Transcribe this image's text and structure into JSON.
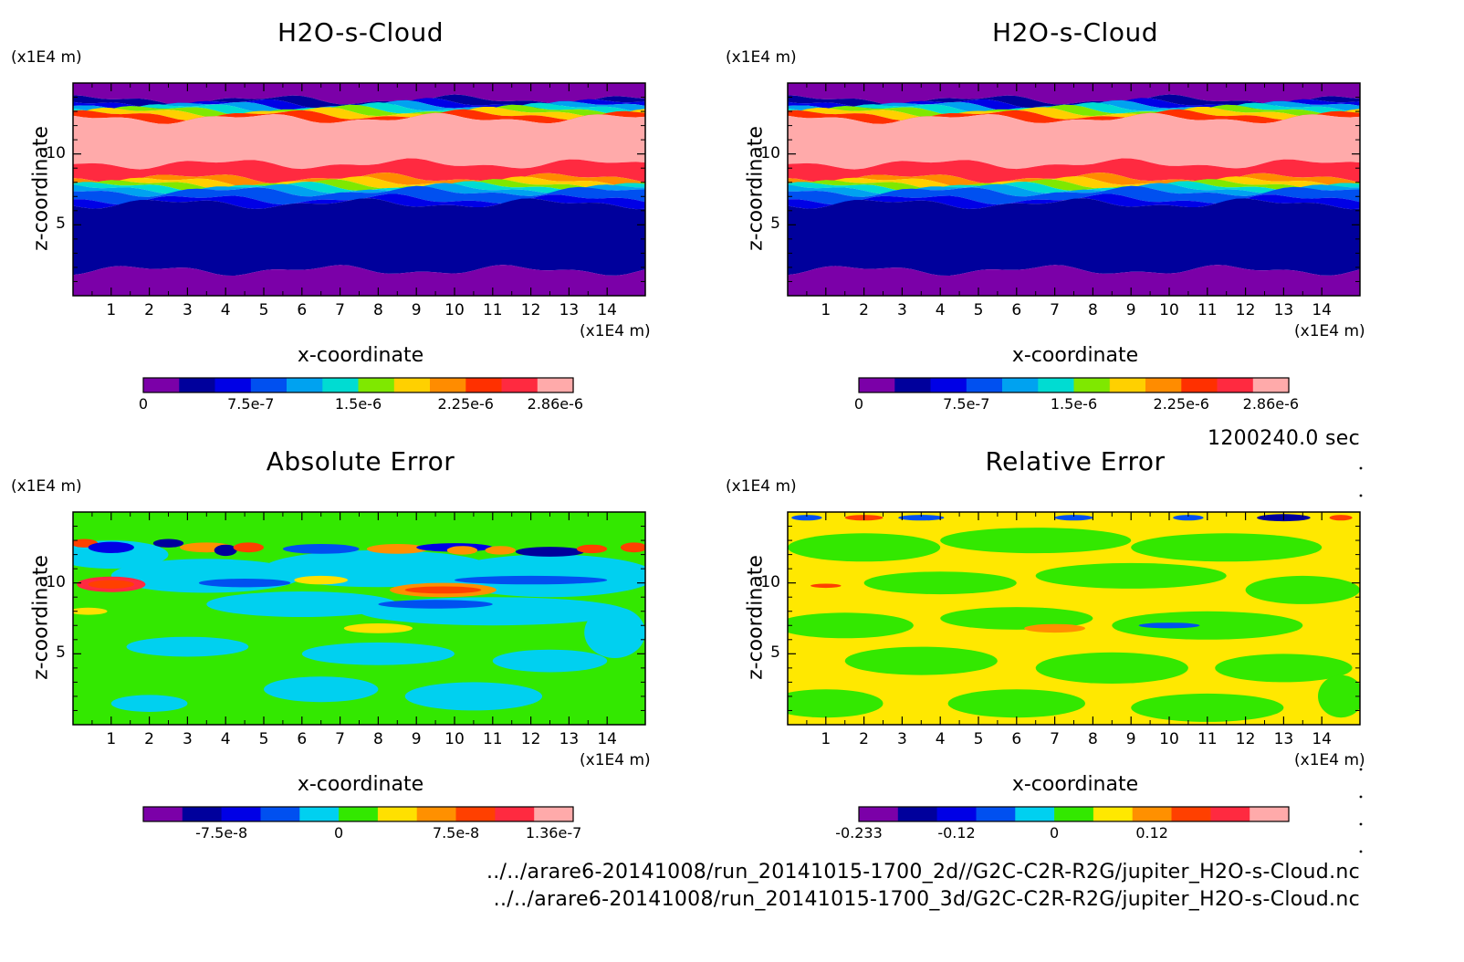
{
  "footer": {
    "time": "1200240.0 sec",
    "file1": "../../arare6-20141008/run_20141015-1700_2d//G2C-C2R-R2G/jupiter_H2O-s-Cloud.nc",
    "file2": "../../arare6-20141008/run_20141015-1700_3d/G2C-C2R-R2G/jupiter_H2O-s-Cloud.nc"
  },
  "chart_data": [
    {
      "type": "heatmap",
      "title": "H2O-s-Cloud",
      "xlabel": "x-coordinate",
      "ylabel": "z-coordinate",
      "xunit": "(x1E4 m)",
      "yunit": "(x1E4 m)",
      "xticks": [
        "1",
        "2",
        "3",
        "4",
        "5",
        "6",
        "7",
        "8",
        "9",
        "10",
        "11",
        "12",
        "13",
        "14"
      ],
      "yticks": [
        "5",
        "10"
      ],
      "xlim": [
        0,
        15
      ],
      "ylim": [
        0,
        15
      ],
      "colorbar": {
        "colors": [
          "#7b00a8",
          "#00009c",
          "#0000e6",
          "#0050f0",
          "#00a2f0",
          "#00dcd2",
          "#7fe800",
          "#ffd000",
          "#ff8c00",
          "#ff3000",
          "#ff2a40",
          "#ffaaaa"
        ],
        "labels": [
          {
            "text": "0",
            "v": 0
          },
          {
            "text": "7.5e-7",
            "v": 3
          },
          {
            "text": "1.5e-6",
            "v": 6
          },
          {
            "text": "2.25e-6",
            "v": 9
          },
          {
            "text": "2.86e-6",
            "v": 11.5
          }
        ]
      },
      "layers": [
        {
          "z0": 13.8,
          "z1": 15.0,
          "c": 0
        },
        {
          "z0": 13.55,
          "z1": 13.8,
          "c": 1
        },
        {
          "z0": 13.4,
          "z1": 13.55,
          "c": 2
        },
        {
          "z0": 13.25,
          "z1": 13.4,
          "c": 4
        },
        {
          "z0": 13.1,
          "z1": 13.25,
          "c": 5
        },
        {
          "z0": 12.95,
          "z1": 13.1,
          "c": 6
        },
        {
          "z0": 12.75,
          "z1": 12.95,
          "c": 7
        },
        {
          "z0": 12.5,
          "z1": 12.75,
          "c": 9
        },
        {
          "z0": 9.3,
          "z1": 12.5,
          "c": 11
        },
        {
          "z0": 8.3,
          "z1": 9.3,
          "c": 10
        },
        {
          "z0": 8.05,
          "z1": 8.3,
          "c": 8
        },
        {
          "z0": 7.85,
          "z1": 8.05,
          "c": 7
        },
        {
          "z0": 7.7,
          "z1": 7.85,
          "c": 6
        },
        {
          "z0": 7.55,
          "z1": 7.7,
          "c": 5
        },
        {
          "z0": 7.35,
          "z1": 7.55,
          "c": 4
        },
        {
          "z0": 6.8,
          "z1": 7.35,
          "c": 3
        },
        {
          "z0": 6.5,
          "z1": 6.8,
          "c": 2
        },
        {
          "z0": 1.8,
          "z1": 6.5,
          "c": 1
        },
        {
          "z0": 0,
          "z1": 1.8,
          "c": 0
        }
      ]
    },
    {
      "type": "heatmap",
      "title": "H2O-s-Cloud",
      "xlabel": "x-coordinate",
      "ylabel": "z-coordinate",
      "xunit": "(x1E4 m)",
      "yunit": "(x1E4 m)",
      "xticks": [
        "1",
        "2",
        "3",
        "4",
        "5",
        "6",
        "7",
        "8",
        "9",
        "10",
        "11",
        "12",
        "13",
        "14"
      ],
      "yticks": [
        "5",
        "10"
      ],
      "xlim": [
        0,
        15
      ],
      "ylim": [
        0,
        15
      ],
      "colorbar": {
        "colors": [
          "#7b00a8",
          "#00009c",
          "#0000e6",
          "#0050f0",
          "#00a2f0",
          "#00dcd2",
          "#7fe800",
          "#ffd000",
          "#ff8c00",
          "#ff3000",
          "#ff2a40",
          "#ffaaaa"
        ],
        "labels": [
          {
            "text": "0",
            "v": 0
          },
          {
            "text": "7.5e-7",
            "v": 3
          },
          {
            "text": "1.5e-6",
            "v": 6
          },
          {
            "text": "2.25e-6",
            "v": 9
          },
          {
            "text": "2.86e-6",
            "v": 11.5
          }
        ]
      },
      "layers": [
        {
          "z0": 13.8,
          "z1": 15.0,
          "c": 0
        },
        {
          "z0": 13.55,
          "z1": 13.8,
          "c": 1
        },
        {
          "z0": 13.4,
          "z1": 13.55,
          "c": 2
        },
        {
          "z0": 13.25,
          "z1": 13.4,
          "c": 4
        },
        {
          "z0": 13.1,
          "z1": 13.25,
          "c": 5
        },
        {
          "z0": 12.95,
          "z1": 13.1,
          "c": 6
        },
        {
          "z0": 12.75,
          "z1": 12.95,
          "c": 7
        },
        {
          "z0": 12.5,
          "z1": 12.75,
          "c": 9
        },
        {
          "z0": 9.3,
          "z1": 12.5,
          "c": 11
        },
        {
          "z0": 8.3,
          "z1": 9.3,
          "c": 10
        },
        {
          "z0": 8.05,
          "z1": 8.3,
          "c": 8
        },
        {
          "z0": 7.85,
          "z1": 8.05,
          "c": 7
        },
        {
          "z0": 7.7,
          "z1": 7.85,
          "c": 6
        },
        {
          "z0": 7.55,
          "z1": 7.7,
          "c": 5
        },
        {
          "z0": 7.35,
          "z1": 7.55,
          "c": 4
        },
        {
          "z0": 6.8,
          "z1": 7.35,
          "c": 3
        },
        {
          "z0": 6.5,
          "z1": 6.8,
          "c": 2
        },
        {
          "z0": 1.8,
          "z1": 6.5,
          "c": 1
        },
        {
          "z0": 0,
          "z1": 1.8,
          "c": 0
        }
      ]
    },
    {
      "type": "heatmap",
      "title": "Absolute Error",
      "xlabel": "x-coordinate",
      "ylabel": "z-coordinate",
      "xunit": "(x1E4 m)",
      "yunit": "(x1E4 m)",
      "xticks": [
        "1",
        "2",
        "3",
        "4",
        "5",
        "6",
        "7",
        "8",
        "9",
        "10",
        "11",
        "12",
        "13",
        "14"
      ],
      "yticks": [
        "5",
        "10"
      ],
      "xlim": [
        0,
        15
      ],
      "ylim": [
        0,
        15
      ],
      "colorbar": {
        "colors": [
          "#7b00a8",
          "#00009c",
          "#0000e6",
          "#0050f0",
          "#00d0f0",
          "#33e800",
          "#ffe000",
          "#ff9000",
          "#ff4000",
          "#ff2a40",
          "#ffaaaa"
        ],
        "labels": [
          {
            "text": "-7.5e-8",
            "v": 2
          },
          {
            "text": "0",
            "v": 5
          },
          {
            "text": "7.5e-8",
            "v": 8
          },
          {
            "text": "1.36e-7",
            "v": 10.5
          }
        ]
      },
      "background": 5,
      "blobs": [
        {
          "x": 1.0,
          "z": 12.0,
          "rx": 1.5,
          "rz": 1.0,
          "c": 4
        },
        {
          "x": 3.5,
          "z": 10.5,
          "rx": 2.5,
          "rz": 1.2,
          "c": 4
        },
        {
          "x": 8.0,
          "z": 11.0,
          "rx": 3.0,
          "rz": 1.3,
          "c": 4
        },
        {
          "x": 12.5,
          "z": 10.5,
          "rx": 2.8,
          "rz": 1.5,
          "c": 4
        },
        {
          "x": 6.0,
          "z": 8.5,
          "rx": 2.5,
          "rz": 0.9,
          "c": 4
        },
        {
          "x": 11.0,
          "z": 8.0,
          "rx": 3.5,
          "rz": 1.0,
          "c": 4
        },
        {
          "x": 3.0,
          "z": 5.5,
          "rx": 1.6,
          "rz": 0.7,
          "c": 4
        },
        {
          "x": 8.0,
          "z": 5.0,
          "rx": 2.0,
          "rz": 0.8,
          "c": 4
        },
        {
          "x": 12.5,
          "z": 4.5,
          "rx": 1.5,
          "rz": 0.8,
          "c": 4
        },
        {
          "x": 6.5,
          "z": 2.5,
          "rx": 1.5,
          "rz": 0.9,
          "c": 4
        },
        {
          "x": 10.5,
          "z": 2.0,
          "rx": 1.8,
          "rz": 1.0,
          "c": 4
        },
        {
          "x": 2.0,
          "z": 1.5,
          "rx": 1.0,
          "rz": 0.6,
          "c": 4
        },
        {
          "x": 14.2,
          "z": 6.5,
          "rx": 0.8,
          "rz": 1.8,
          "c": 4
        },
        {
          "x": 1.0,
          "z": 9.9,
          "rx": 0.9,
          "rz": 0.55,
          "c": 9
        },
        {
          "x": 1.0,
          "z": 9.9,
          "rx": 0.6,
          "rz": 0.3,
          "c": 8
        },
        {
          "x": 9.7,
          "z": 9.5,
          "rx": 1.4,
          "rz": 0.5,
          "c": 7
        },
        {
          "x": 9.7,
          "z": 9.5,
          "rx": 1.0,
          "rz": 0.25,
          "c": 8
        },
        {
          "x": 8.0,
          "z": 6.8,
          "rx": 0.9,
          "rz": 0.35,
          "c": 6
        },
        {
          "x": 6.5,
          "z": 10.2,
          "rx": 0.7,
          "rz": 0.3,
          "c": 6
        },
        {
          "x": 0.3,
          "z": 12.8,
          "rx": 0.35,
          "rz": 0.3,
          "c": 8
        },
        {
          "x": 14.7,
          "z": 12.5,
          "rx": 0.35,
          "rz": 0.35,
          "c": 8
        },
        {
          "x": 1.0,
          "z": 12.5,
          "rx": 0.6,
          "rz": 0.4,
          "c": 2
        },
        {
          "x": 2.5,
          "z": 12.8,
          "rx": 0.4,
          "rz": 0.3,
          "c": 1
        },
        {
          "x": 3.5,
          "z": 12.5,
          "rx": 0.7,
          "rz": 0.35,
          "c": 7
        },
        {
          "x": 4.0,
          "z": 12.3,
          "rx": 0.3,
          "rz": 0.4,
          "c": 1
        },
        {
          "x": 4.6,
          "z": 12.5,
          "rx": 0.4,
          "rz": 0.35,
          "c": 8
        },
        {
          "x": 6.5,
          "z": 12.4,
          "rx": 1.0,
          "rz": 0.35,
          "c": 3
        },
        {
          "x": 8.5,
          "z": 12.4,
          "rx": 0.8,
          "rz": 0.35,
          "c": 7
        },
        {
          "x": 10.0,
          "z": 12.5,
          "rx": 1.0,
          "rz": 0.3,
          "c": 2
        },
        {
          "x": 10.2,
          "z": 12.3,
          "rx": 0.4,
          "rz": 0.3,
          "c": 7
        },
        {
          "x": 11.2,
          "z": 12.3,
          "rx": 0.4,
          "rz": 0.3,
          "c": 7
        },
        {
          "x": 12.5,
          "z": 12.2,
          "rx": 0.9,
          "rz": 0.35,
          "c": 1
        },
        {
          "x": 13.6,
          "z": 12.4,
          "rx": 0.4,
          "rz": 0.3,
          "c": 8
        },
        {
          "x": 4.5,
          "z": 10.0,
          "rx": 1.2,
          "rz": 0.3,
          "c": 3
        },
        {
          "x": 12.0,
          "z": 10.2,
          "rx": 2.0,
          "rz": 0.3,
          "c": 3
        },
        {
          "x": 9.5,
          "z": 8.5,
          "rx": 1.5,
          "rz": 0.3,
          "c": 3
        },
        {
          "x": 0.4,
          "z": 8.0,
          "rx": 0.5,
          "rz": 0.25,
          "c": 6
        }
      ]
    },
    {
      "type": "heatmap",
      "title": "Relative Error",
      "xlabel": "x-coordinate",
      "ylabel": "z-coordinate",
      "xunit": "(x1E4 m)",
      "yunit": "(x1E4 m)",
      "xticks": [
        "1",
        "2",
        "3",
        "4",
        "5",
        "6",
        "7",
        "8",
        "9",
        "10",
        "11",
        "12",
        "13",
        "14"
      ],
      "yticks": [
        "5",
        "10"
      ],
      "xlim": [
        0,
        15
      ],
      "ylim": [
        0,
        15
      ],
      "colorbar": {
        "colors": [
          "#7b00a8",
          "#00009c",
          "#0000e6",
          "#0050f0",
          "#00d0f0",
          "#33e800",
          "#ffe800",
          "#ff9000",
          "#ff4000",
          "#ff2a40",
          "#ffaaaa"
        ],
        "labels": [
          {
            "text": "-0.233",
            "v": 0
          },
          {
            "text": "-0.12",
            "v": 2.5
          },
          {
            "text": "0",
            "v": 5
          },
          {
            "text": "0.12",
            "v": 7.5
          }
        ]
      },
      "background": 6,
      "blobs": [
        {
          "x": 2.0,
          "z": 12.5,
          "rx": 2.0,
          "rz": 1.0,
          "c": 5
        },
        {
          "x": 6.5,
          "z": 13.0,
          "rx": 2.5,
          "rz": 0.9,
          "c": 5
        },
        {
          "x": 11.5,
          "z": 12.5,
          "rx": 2.5,
          "rz": 1.0,
          "c": 5
        },
        {
          "x": 4.0,
          "z": 10.0,
          "rx": 2.0,
          "rz": 0.8,
          "c": 5
        },
        {
          "x": 9.0,
          "z": 10.5,
          "rx": 2.5,
          "rz": 0.9,
          "c": 5
        },
        {
          "x": 13.5,
          "z": 9.5,
          "rx": 1.5,
          "rz": 1.0,
          "c": 5
        },
        {
          "x": 1.5,
          "z": 7.0,
          "rx": 1.8,
          "rz": 0.9,
          "c": 5
        },
        {
          "x": 6.0,
          "z": 7.5,
          "rx": 2.0,
          "rz": 0.8,
          "c": 5
        },
        {
          "x": 11.0,
          "z": 7.0,
          "rx": 2.5,
          "rz": 1.0,
          "c": 5
        },
        {
          "x": 3.5,
          "z": 4.5,
          "rx": 2.0,
          "rz": 1.0,
          "c": 5
        },
        {
          "x": 8.5,
          "z": 4.0,
          "rx": 2.0,
          "rz": 1.1,
          "c": 5
        },
        {
          "x": 13.0,
          "z": 4.0,
          "rx": 1.8,
          "rz": 1.0,
          "c": 5
        },
        {
          "x": 1.0,
          "z": 1.5,
          "rx": 1.5,
          "rz": 1.0,
          "c": 5
        },
        {
          "x": 6.0,
          "z": 1.5,
          "rx": 1.8,
          "rz": 1.0,
          "c": 5
        },
        {
          "x": 11.0,
          "z": 1.2,
          "rx": 2.0,
          "rz": 1.0,
          "c": 5
        },
        {
          "x": 14.5,
          "z": 2.0,
          "rx": 0.6,
          "rz": 1.5,
          "c": 5
        },
        {
          "x": 7.0,
          "z": 6.8,
          "rx": 0.8,
          "rz": 0.3,
          "c": 7
        },
        {
          "x": 1.0,
          "z": 9.8,
          "rx": 0.4,
          "rz": 0.15,
          "c": 8
        },
        {
          "x": 10.0,
          "z": 7.0,
          "rx": 0.8,
          "rz": 0.2,
          "c": 3
        },
        {
          "x": 0.5,
          "z": 14.6,
          "rx": 0.4,
          "rz": 0.2,
          "c": 3
        },
        {
          "x": 2.0,
          "z": 14.6,
          "rx": 0.5,
          "rz": 0.2,
          "c": 8
        },
        {
          "x": 3.5,
          "z": 14.6,
          "rx": 0.6,
          "rz": 0.2,
          "c": 3
        },
        {
          "x": 7.5,
          "z": 14.6,
          "rx": 0.5,
          "rz": 0.2,
          "c": 3
        },
        {
          "x": 13.0,
          "z": 14.6,
          "rx": 0.7,
          "rz": 0.25,
          "c": 1
        },
        {
          "x": 14.5,
          "z": 14.6,
          "rx": 0.3,
          "rz": 0.2,
          "c": 8
        },
        {
          "x": 10.5,
          "z": 14.6,
          "rx": 0.4,
          "rz": 0.2,
          "c": 3
        }
      ]
    }
  ]
}
